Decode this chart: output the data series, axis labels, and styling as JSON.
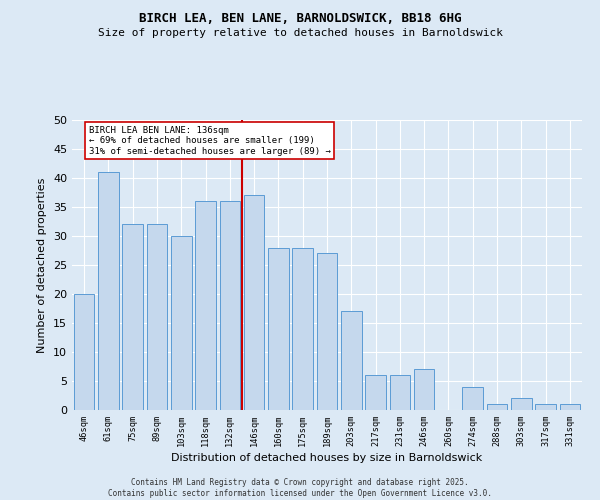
{
  "title1": "BIRCH LEA, BEN LANE, BARNOLDSWICK, BB18 6HG",
  "title2": "Size of property relative to detached houses in Barnoldswick",
  "xlabel": "Distribution of detached houses by size in Barnoldswick",
  "ylabel": "Number of detached properties",
  "categories": [
    "46sqm",
    "61sqm",
    "75sqm",
    "89sqm",
    "103sqm",
    "118sqm",
    "132sqm",
    "146sqm",
    "160sqm",
    "175sqm",
    "189sqm",
    "203sqm",
    "217sqm",
    "231sqm",
    "246sqm",
    "260sqm",
    "274sqm",
    "288sqm",
    "303sqm",
    "317sqm",
    "331sqm"
  ],
  "values": [
    20,
    41,
    32,
    32,
    30,
    36,
    36,
    37,
    28,
    28,
    27,
    17,
    6,
    6,
    7,
    0,
    4,
    1,
    2,
    1,
    1
  ],
  "bar_color": "#c5d8ed",
  "bar_edge_color": "#5b9bd5",
  "marker_label_line1": "BIRCH LEA BEN LANE: 136sqm",
  "marker_label_line2": "← 69% of detached houses are smaller (199)",
  "marker_label_line3": "31% of semi-detached houses are larger (89) →",
  "annotation_color": "#cc0000",
  "bg_color": "#dce9f5",
  "grid_color": "#ffffff",
  "footer": "Contains HM Land Registry data © Crown copyright and database right 2025.\nContains public sector information licensed under the Open Government Licence v3.0.",
  "ylim": [
    0,
    50
  ],
  "yticks": [
    0,
    5,
    10,
    15,
    20,
    25,
    30,
    35,
    40,
    45,
    50
  ]
}
